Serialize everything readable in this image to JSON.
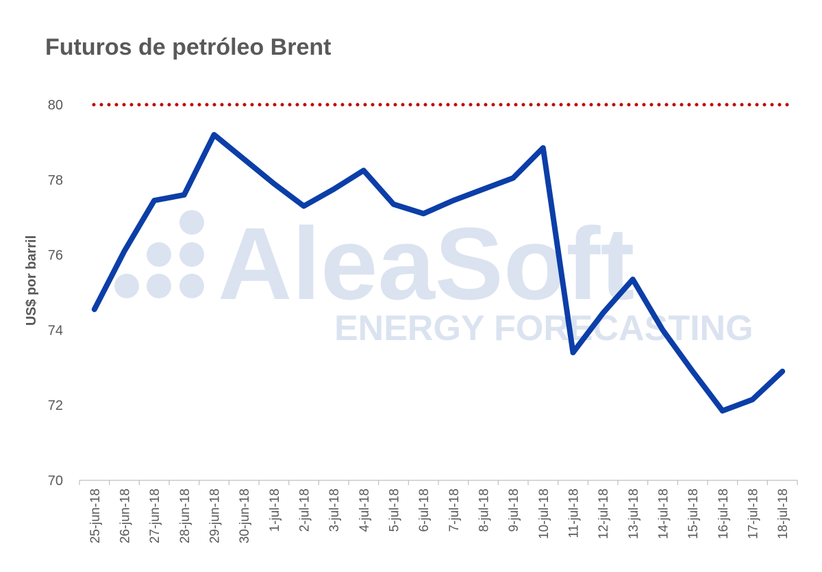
{
  "chart_data": {
    "type": "line",
    "title": "Futuros de petróleo Brent",
    "ylabel": "US$ por barril",
    "xlabel": "",
    "ylim": [
      70,
      80
    ],
    "yticks": [
      70,
      72,
      74,
      76,
      78,
      80
    ],
    "categories": [
      "25-jun-18",
      "26-jun-18",
      "27-jun-18",
      "28-jun-18",
      "29-jun-18",
      "30-jun-18",
      "1-jul-18",
      "2-jul-18",
      "3-jul-18",
      "4-jul-18",
      "5-jul-18",
      "6-jul-18",
      "7-jul-18",
      "8-jul-18",
      "9-jul-18",
      "10-jul-18",
      "11-jul-18",
      "12-jul-18",
      "13-jul-18",
      "14-jul-18",
      "15-jul-18",
      "16-jul-18",
      "17-jul-18",
      "18-jul-18"
    ],
    "series": [
      {
        "color": "#0c3ea8",
        "values": [
          74.55,
          76.1,
          77.45,
          77.6,
          79.2,
          78.55,
          77.9,
          77.3,
          77.75,
          78.25,
          77.35,
          77.1,
          77.45,
          77.75,
          78.05,
          78.85,
          73.4,
          74.45,
          75.35,
          74.0,
          72.9,
          71.85,
          72.15,
          72.9
        ]
      }
    ],
    "reference_line": {
      "value": 80,
      "color": "#c00000",
      "style": "dotted"
    },
    "grid": false
  },
  "watermark": {
    "brand": "AleaSoft",
    "tagline": "ENERGY FORECASTING",
    "color": "#dbe3f0"
  }
}
